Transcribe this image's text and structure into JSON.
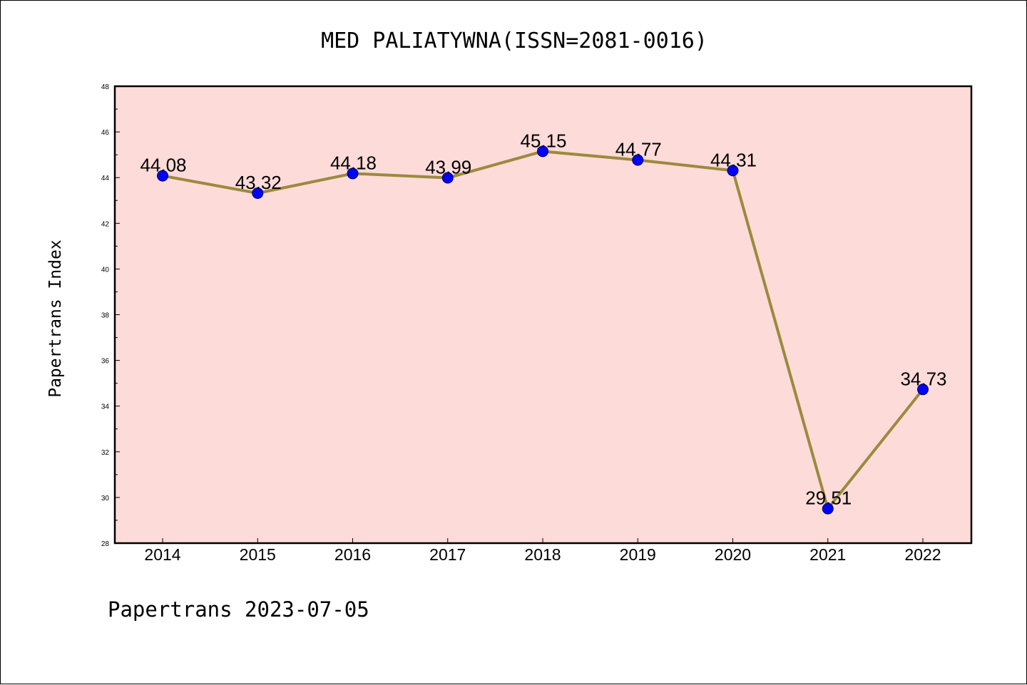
{
  "footer": "Papertrans 2023-07-05",
  "colors": {
    "plot_background": "#fddbd9",
    "line": "#9b8a3e",
    "marker": "#0000ff"
  },
  "chart_data": {
    "type": "line",
    "title": "MED PALIATYWNA(ISSN=2081-0016)",
    "xlabel": "",
    "ylabel": "Papertrans Index",
    "categories": [
      "2014",
      "2015",
      "2016",
      "2017",
      "2018",
      "2019",
      "2020",
      "2021",
      "2022"
    ],
    "values": [
      44.08,
      43.32,
      44.18,
      43.99,
      45.15,
      44.77,
      44.31,
      29.51,
      34.73
    ],
    "data_labels": [
      "44.08",
      "43.32",
      "44.18",
      "43.99",
      "45.15",
      "44.77",
      "44.31",
      "29.51",
      "34.73"
    ],
    "ylim": [
      28,
      48
    ],
    "yticks": [
      "28",
      "30",
      "32",
      "34",
      "36",
      "38",
      "40",
      "42",
      "44",
      "46",
      "48"
    ],
    "grid": false,
    "legend": "none"
  }
}
